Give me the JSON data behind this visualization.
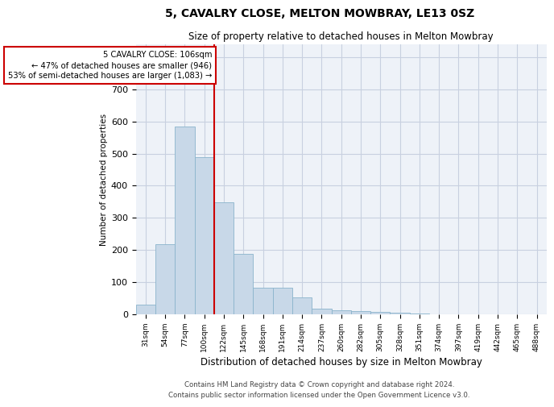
{
  "title1": "5, CAVALRY CLOSE, MELTON MOWBRAY, LE13 0SZ",
  "title2": "Size of property relative to detached houses in Melton Mowbray",
  "xlabel": "Distribution of detached houses by size in Melton Mowbray",
  "ylabel": "Number of detached properties",
  "bar_labels": [
    "31sqm",
    "54sqm",
    "77sqm",
    "100sqm",
    "122sqm",
    "145sqm",
    "168sqm",
    "191sqm",
    "214sqm",
    "237sqm",
    "260sqm",
    "282sqm",
    "305sqm",
    "328sqm",
    "351sqm",
    "374sqm",
    "397sqm",
    "419sqm",
    "442sqm",
    "465sqm",
    "488sqm"
  ],
  "bar_heights": [
    30,
    218,
    585,
    490,
    348,
    188,
    83,
    83,
    52,
    18,
    12,
    10,
    8,
    5,
    2,
    1,
    1,
    0,
    0,
    0,
    0
  ],
  "bar_color": "#c8d8e8",
  "bar_edge_color": "#8ab4cc",
  "grid_color": "#c8d0e0",
  "background_color": "#eef2f8",
  "annotation_line1": "5 CAVALRY CLOSE: 106sqm",
  "annotation_line2": "← 47% of detached houses are smaller (946)",
  "annotation_line3": "53% of semi-detached houses are larger (1,083) →",
  "vline_color": "#cc0000",
  "annotation_box_color": "#cc0000",
  "ylim": [
    0,
    840
  ],
  "yticks": [
    0,
    100,
    200,
    300,
    400,
    500,
    600,
    700,
    800
  ],
  "footer1": "Contains HM Land Registry data © Crown copyright and database right 2024.",
  "footer2": "Contains public sector information licensed under the Open Government Licence v3.0."
}
